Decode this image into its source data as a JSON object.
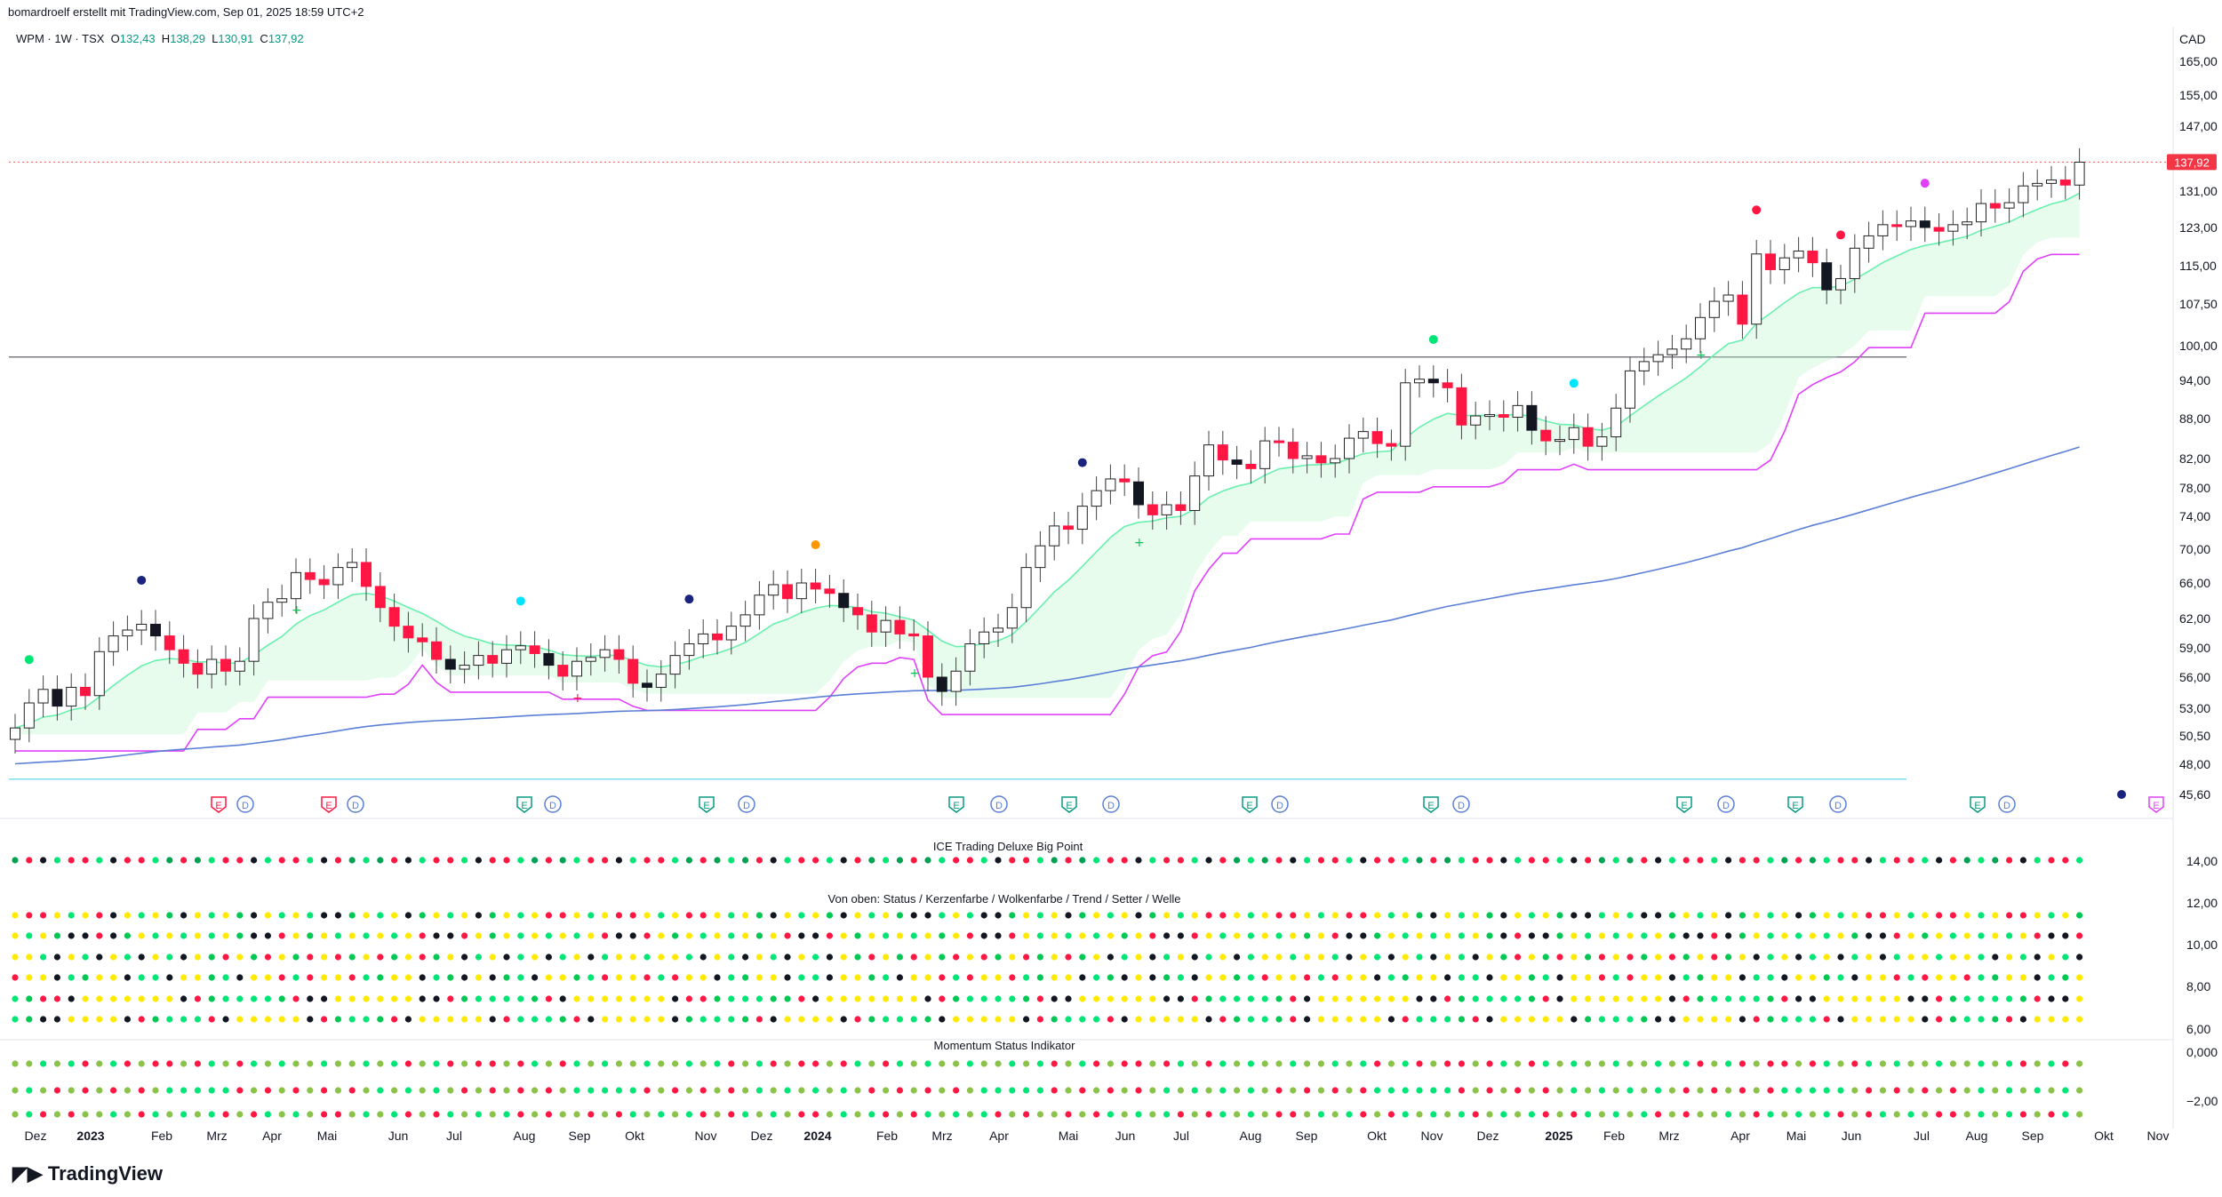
{
  "header": {
    "credit": "bomardroelf erstellt mit TradingView.com, Sep 01, 2025 18:59 UTC+2"
  },
  "symbol": {
    "name": "WPM · 1W · TSX",
    "o_label": "O",
    "o": "132,43",
    "h_label": "H",
    "h": "138,29",
    "l_label": "L",
    "l": "130,91",
    "c_label": "C",
    "c": "137,92"
  },
  "currency": "CAD",
  "last_price": "137,92",
  "price_axis": [
    "165,00",
    "155,00",
    "147,00",
    "131,00",
    "123,00",
    "115,00",
    "107,50",
    "100,00",
    "94,00",
    "88,00",
    "82,00",
    "78,00",
    "74,00",
    "70,00",
    "66,00",
    "62,00",
    "59,00",
    "56,00",
    "53,00",
    "50,50",
    "48,00",
    "45,60"
  ],
  "osc_axis": [
    "14,00",
    "12,00",
    "10,00",
    "8,00",
    "6,00"
  ],
  "mom_axis": [
    "0,000",
    "−2,00"
  ],
  "time_axis": [
    "Dez",
    "2023",
    "Feb",
    "Mrz",
    "Apr",
    "Mai",
    "Jun",
    "Jul",
    "Aug",
    "Sep",
    "Okt",
    "Nov",
    "Dez",
    "2024",
    "Feb",
    "Mrz",
    "Apr",
    "Mai",
    "Jun",
    "Jul",
    "Aug",
    "Sep",
    "Okt",
    "Nov",
    "Dez",
    "2025",
    "Feb",
    "Mrz",
    "Apr",
    "Mai",
    "Jun",
    "Jul",
    "Aug",
    "Sep",
    "Okt",
    "Nov"
  ],
  "panels": {
    "big_point": "ICE Trading Deluxe Big Point",
    "status": "Von oben: Status / Kerzenfarbe / Wolkenfarbe / Trend / Setter / Welle",
    "momentum": "Momentum Status Indikator"
  },
  "events": {
    "e": "E",
    "d": "D"
  },
  "logo": {
    "text": "TradingView"
  },
  "colors": {
    "up": "#00c853",
    "down": "#ff1744",
    "black": "#131722",
    "cloud": "#b9f6ca",
    "magenta": "#e040fb",
    "blue": "#5b7fd6"
  },
  "chart_data": {
    "type": "candlestick",
    "symbol": "WPM",
    "interval": "1W",
    "exchange": "TSX",
    "ohlc_last": {
      "open": 132.43,
      "high": 138.29,
      "low": 130.91,
      "close": 137.92
    },
    "y_range": [
      45.6,
      165.0
    ],
    "closes": [
      51.2,
      53.5,
      54.8,
      53.2,
      55.0,
      54.2,
      58.6,
      60.2,
      60.8,
      61.4,
      60.2,
      58.8,
      57.4,
      56.3,
      57.8,
      56.6,
      57.6,
      62.0,
      63.8,
      64.2,
      67.2,
      66.4,
      65.8,
      67.8,
      68.4,
      65.6,
      63.2,
      61.2,
      60.0,
      59.6,
      57.8,
      56.8,
      57.2,
      58.2,
      57.4,
      58.8,
      59.2,
      58.4,
      57.2,
      56.1,
      57.6,
      58.0,
      58.8,
      57.8,
      55.4,
      55.0,
      56.3,
      58.2,
      59.4,
      60.4,
      59.8,
      61.2,
      62.4,
      64.6,
      65.8,
      64.2,
      66.0,
      65.3,
      64.8,
      63.2,
      62.4,
      60.6,
      61.8,
      60.4,
      60.2,
      56.0,
      54.6,
      56.6,
      59.4,
      60.6,
      61.0,
      63.2,
      67.8,
      70.4,
      72.8,
      72.4,
      75.4,
      77.6,
      79.2,
      78.8,
      75.6,
      74.2,
      75.6,
      74.8,
      79.6,
      84.0,
      81.8,
      81.2,
      80.6,
      84.6,
      84.4,
      82.0,
      82.4,
      81.4,
      82.0,
      85.0,
      86.0,
      84.2,
      83.8,
      93.6,
      94.2,
      93.6,
      92.8,
      87.0,
      88.4,
      88.6,
      88.2,
      90.0,
      86.2,
      84.6,
      84.8,
      86.6,
      83.8,
      85.2,
      89.6,
      95.6,
      97.2,
      98.4,
      99.4,
      101.2,
      105.0,
      108.0,
      109.2,
      103.8,
      117.4,
      114.2,
      116.6,
      118.0,
      115.6,
      110.2,
      112.4,
      118.6,
      121.2,
      123.6,
      123.2,
      124.4,
      123.0,
      122.2,
      123.6,
      124.2,
      128.2,
      127.2,
      128.4,
      132.2,
      132.8,
      133.6,
      132.4,
      137.9
    ],
    "overlays": [
      "EMA fast (light green)",
      "Cloud (green fill)",
      "Lower band (magenta)",
      "SMA long (blue)"
    ],
    "horizontal_lines": [
      {
        "value": 98.0,
        "color": "gray"
      },
      {
        "value": 46.8,
        "color": "cyan"
      },
      {
        "value": 137.92,
        "color": "red dotted"
      }
    ],
    "sub_panels": [
      "ICE Trading Deluxe Big Point",
      "Von oben: Status / Kerzenfarbe / Wolkenfarbe / Trend / Setter / Welle",
      "Momentum Status Indikator"
    ]
  }
}
